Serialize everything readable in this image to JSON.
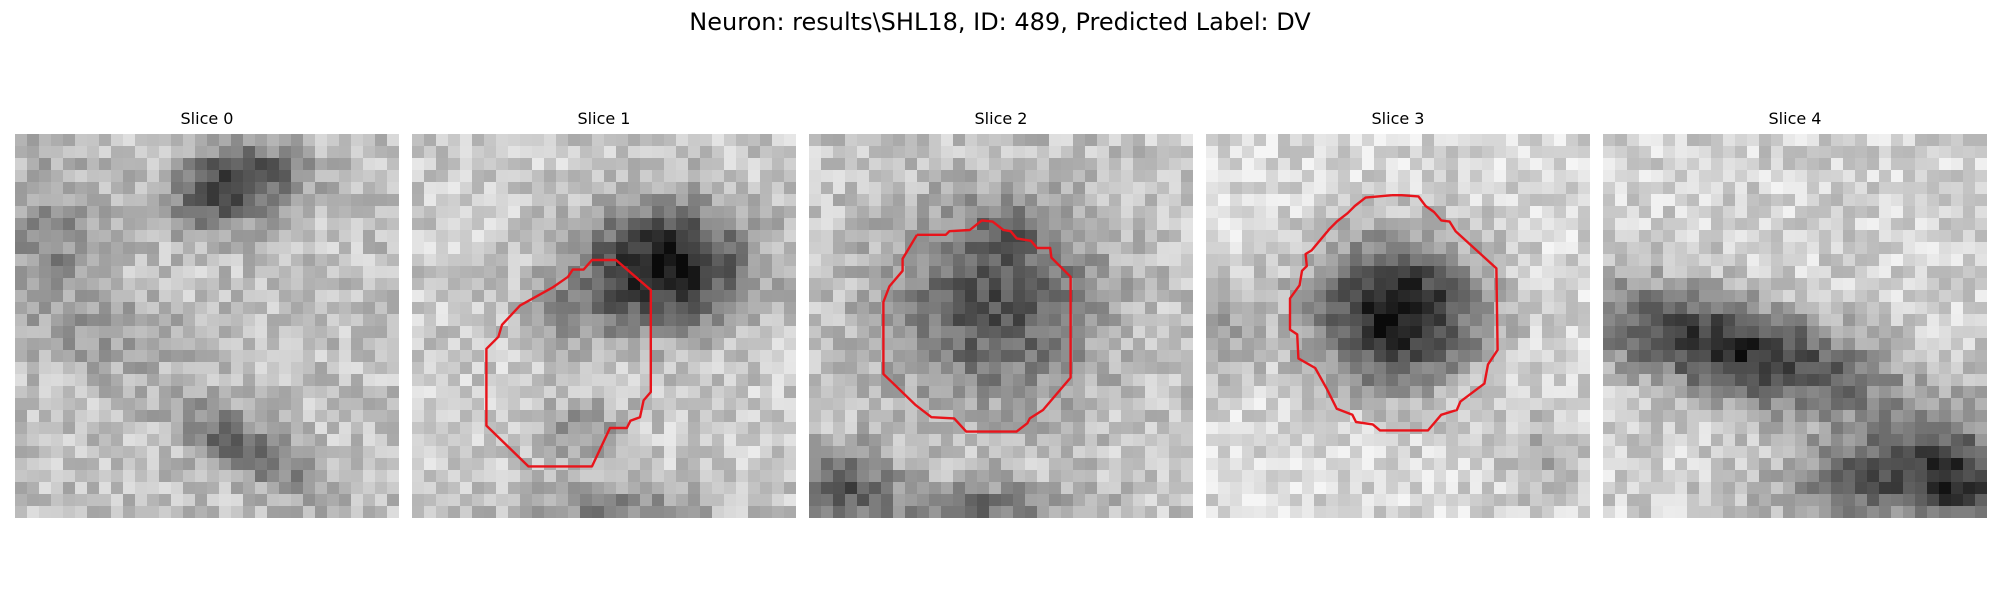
{
  "figure": {
    "title": "Neuron: results\\SHL18, ID: 489, Predicted Label: DV",
    "contour_color": "#e8141b"
  },
  "slices": [
    {
      "label": "Slice 0",
      "has_contour": false
    },
    {
      "label": "Slice 1",
      "has_contour": true
    },
    {
      "label": "Slice 2",
      "has_contour": true
    },
    {
      "label": "Slice 3",
      "has_contour": true
    },
    {
      "label": "Slice 4",
      "has_contour": false
    }
  ]
}
